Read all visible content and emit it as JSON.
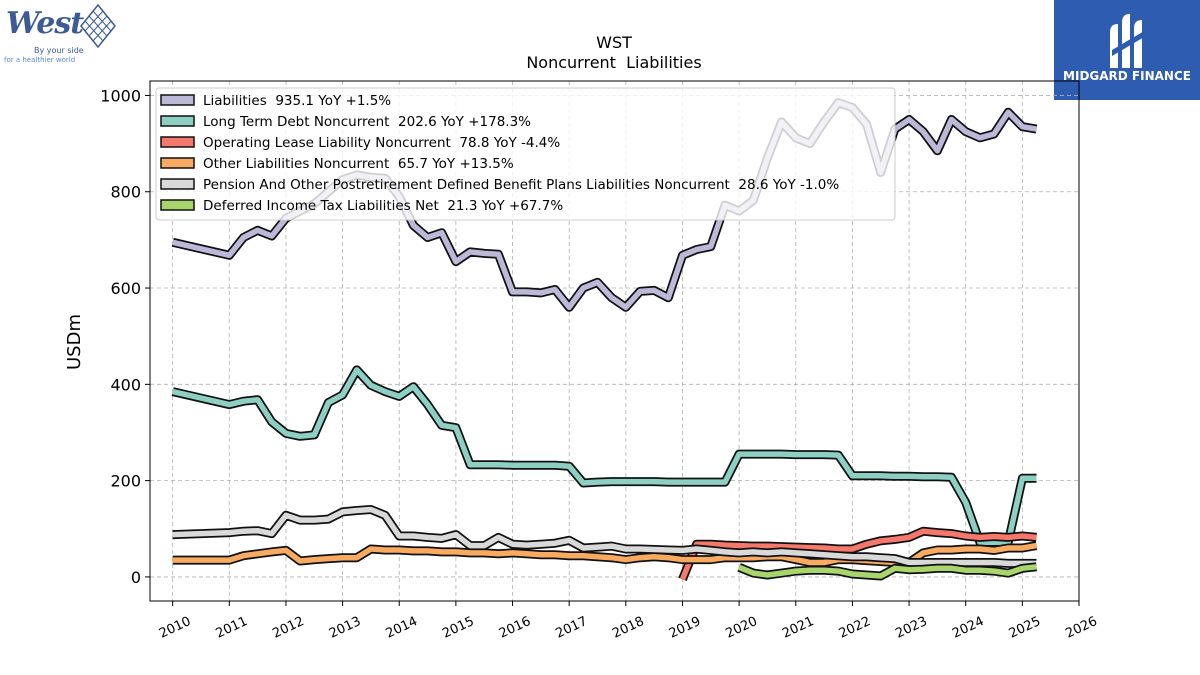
{
  "branding": {
    "left_logo": {
      "word": "West",
      "tagline_1": "By your side",
      "tagline_2": "for a healthier world",
      "icon": "west-diamond-logo-icon",
      "color": "#3d5a96"
    },
    "right_logo": {
      "text": "MIDGARD FINANCE",
      "icon": "midgard-m-logo-icon",
      "background": "#2e5cb0"
    }
  },
  "chart_data": {
    "type": "line",
    "title": "WST",
    "subtitle": "Noncurrent  Liabilities",
    "ylabel": "USDm",
    "xlabel": "",
    "xlim": [
      2009.6,
      2026.0
    ],
    "ylim": [
      -50,
      1030
    ],
    "x_ticks": [
      2010,
      2011,
      2012,
      2013,
      2014,
      2015,
      2016,
      2017,
      2018,
      2019,
      2020,
      2021,
      2022,
      2023,
      2024,
      2025,
      2026
    ],
    "y_ticks": [
      0,
      200,
      400,
      600,
      800,
      1000
    ],
    "grid": true,
    "legend_position": "top-left",
    "series": [
      {
        "name": "Liabilities",
        "legend": "Liabilities  935.1 YoY +1.5%",
        "color": "#bcb9d8",
        "x": [
          2010.0,
          2011.0,
          2011.25,
          2011.5,
          2011.75,
          2012.0,
          2012.25,
          2012.5,
          2012.75,
          2013.0,
          2013.25,
          2013.5,
          2013.75,
          2014.0,
          2014.25,
          2014.5,
          2014.75,
          2015.0,
          2015.25,
          2015.5,
          2015.75,
          2016.0,
          2016.25,
          2016.5,
          2016.75,
          2017.0,
          2017.25,
          2017.5,
          2017.75,
          2018.0,
          2018.25,
          2018.5,
          2018.75,
          2019.0,
          2019.25,
          2019.5,
          2019.75,
          2020.0,
          2020.25,
          2020.5,
          2020.75,
          2021.0,
          2021.25,
          2021.5,
          2021.75,
          2022.0,
          2022.25,
          2022.5,
          2022.75,
          2023.0,
          2023.25,
          2023.5,
          2023.75,
          2024.0,
          2024.25,
          2024.5,
          2024.75,
          2025.0,
          2025.25
        ],
        "values": [
          695,
          668,
          705,
          720,
          708,
          745,
          760,
          775,
          800,
          825,
          835,
          830,
          828,
          790,
          730,
          705,
          715,
          655,
          675,
          672,
          670,
          592,
          592,
          590,
          597,
          560,
          600,
          612,
          580,
          560,
          593,
          595,
          580,
          668,
          680,
          686,
          772,
          760,
          782,
          870,
          945,
          912,
          900,
          945,
          985,
          975,
          940,
          840,
          930,
          950,
          925,
          885,
          950,
          925,
          912,
          920,
          965,
          935,
          930
        ]
      },
      {
        "name": "Long Term Debt Noncurrent",
        "legend": "Long Term Debt Noncurrent  202.6 YoY +178.3%",
        "color": "#8ecfc4",
        "x": [
          2010.0,
          2011.0,
          2011.25,
          2011.5,
          2011.75,
          2012.0,
          2012.25,
          2012.5,
          2012.75,
          2013.0,
          2013.25,
          2013.5,
          2013.75,
          2014.0,
          2014.25,
          2014.5,
          2014.75,
          2015.0,
          2015.25,
          2015.5,
          2015.75,
          2016.0,
          2016.25,
          2016.5,
          2016.75,
          2017.0,
          2017.25,
          2017.5,
          2017.75,
          2018.0,
          2018.25,
          2018.5,
          2018.75,
          2019.0,
          2019.25,
          2019.5,
          2019.75,
          2020.0,
          2020.25,
          2020.5,
          2020.75,
          2021.0,
          2021.25,
          2021.5,
          2021.75,
          2022.0,
          2022.25,
          2022.5,
          2022.75,
          2023.0,
          2023.25,
          2023.5,
          2023.75,
          2024.0,
          2024.25,
          2024.5,
          2024.75,
          2025.0,
          2025.25
        ],
        "values": [
          385,
          358,
          365,
          368,
          322,
          298,
          292,
          295,
          362,
          378,
          430,
          398,
          385,
          375,
          395,
          358,
          315,
          310,
          233,
          233,
          233,
          232,
          232,
          232,
          232,
          230,
          195,
          197,
          198,
          198,
          198,
          198,
          197,
          197,
          197,
          197,
          197,
          255,
          255,
          255,
          255,
          254,
          254,
          254,
          253,
          210,
          210,
          210,
          209,
          209,
          208,
          208,
          207,
          155,
          72,
          72,
          72,
          205,
          205
        ]
      },
      {
        "name": "Operating Lease Liability Noncurrent",
        "legend": "Operating Lease Liability Noncurrent  78.8 YoY -4.4%",
        "color": "#f4786c",
        "x": [
          2019.0,
          2019.25,
          2019.5,
          2019.75,
          2020.0,
          2020.25,
          2020.5,
          2020.75,
          2021.0,
          2021.25,
          2021.5,
          2021.75,
          2022.0,
          2022.25,
          2022.5,
          2022.75,
          2023.0,
          2023.25,
          2023.5,
          2023.75,
          2024.0,
          2024.25,
          2024.5,
          2024.75,
          2025.0,
          2025.25
        ],
        "values": [
          -5,
          68,
          68,
          66,
          65,
          64,
          64,
          63,
          62,
          61,
          60,
          58,
          58,
          68,
          75,
          78,
          82,
          95,
          92,
          90,
          85,
          82,
          84,
          82,
          85,
          82
        ]
      },
      {
        "name": "Other Liabilities Noncurrent",
        "legend": "Other Liabilities Noncurrent  65.7 YoY +13.5%",
        "color": "#f8aa60",
        "x": [
          2010.0,
          2011.0,
          2011.25,
          2011.5,
          2011.75,
          2012.0,
          2012.25,
          2012.5,
          2012.75,
          2013.0,
          2013.25,
          2013.5,
          2013.75,
          2014.0,
          2014.25,
          2014.5,
          2014.75,
          2015.0,
          2015.25,
          2015.5,
          2015.75,
          2016.0,
          2016.25,
          2016.5,
          2016.75,
          2017.0,
          2017.25,
          2017.5,
          2017.75,
          2018.0,
          2018.25,
          2018.5,
          2018.75,
          2019.0,
          2019.25,
          2019.5,
          2019.75,
          2020.0,
          2020.25,
          2020.5,
          2020.75,
          2021.0,
          2021.25,
          2021.5,
          2021.75,
          2022.0,
          2022.25,
          2022.5,
          2022.75,
          2023.0,
          2023.25,
          2023.5,
          2023.75,
          2024.0,
          2024.25,
          2024.5,
          2024.75,
          2025.0,
          2025.25
        ],
        "values": [
          35,
          35,
          44,
          48,
          52,
          55,
          33,
          36,
          38,
          40,
          40,
          58,
          56,
          56,
          54,
          54,
          52,
          52,
          50,
          50,
          48,
          50,
          48,
          46,
          46,
          44,
          44,
          42,
          40,
          36,
          40,
          42,
          40,
          36,
          36,
          36,
          40,
          40,
          40,
          42,
          42,
          36,
          30,
          30,
          36,
          36,
          34,
          32,
          30,
          30,
          50,
          56,
          56,
          58,
          58,
          55,
          60,
          60,
          65
        ]
      },
      {
        "name": "Pension And Other Postretirement Defined Benefit Plans Liabilities Noncurrent",
        "legend": "Pension And Other Postretirement Defined Benefit Plans Liabilities Noncurrent  28.6 YoY -1.0%",
        "color": "#d9d9d9",
        "x": [
          2010.0,
          2011.0,
          2011.25,
          2011.5,
          2011.75,
          2012.0,
          2012.25,
          2012.5,
          2012.75,
          2013.0,
          2013.25,
          2013.5,
          2013.75,
          2014.0,
          2014.25,
          2014.5,
          2014.75,
          2015.0,
          2015.25,
          2015.5,
          2015.75,
          2016.0,
          2016.25,
          2016.5,
          2016.75,
          2017.0,
          2017.25,
          2017.5,
          2017.75,
          2018.0,
          2018.25,
          2018.5,
          2018.75,
          2019.0,
          2019.25,
          2019.5,
          2019.75,
          2020.0,
          2020.25,
          2020.5,
          2020.75,
          2021.0,
          2021.25,
          2021.5,
          2021.75,
          2022.0,
          2022.25,
          2022.5,
          2022.75,
          2023.0,
          2023.25,
          2023.5,
          2023.75,
          2024.0,
          2024.25,
          2024.5,
          2024.75,
          2025.0,
          2025.25
        ],
        "values": [
          88,
          92,
          95,
          96,
          90,
          128,
          118,
          118,
          120,
          135,
          138,
          140,
          128,
          85,
          85,
          82,
          80,
          88,
          65,
          65,
          82,
          68,
          66,
          68,
          70,
          76,
          60,
          62,
          64,
          58,
          58,
          57,
          56,
          55,
          58,
          55,
          52,
          50,
          52,
          50,
          52,
          50,
          48,
          46,
          44,
          42,
          42,
          40,
          38,
          30,
          30,
          30,
          30,
          30,
          30,
          30,
          28,
          28,
          28
        ]
      },
      {
        "name": "Deferred Income Tax Liabilities Net",
        "legend": "Deferred Income Tax Liabilities Net  21.3 YoY +67.7%",
        "color": "#a8d66c",
        "x": [
          2020.0,
          2020.25,
          2020.5,
          2020.75,
          2021.0,
          2021.25,
          2021.5,
          2021.75,
          2022.0,
          2022.25,
          2022.5,
          2022.75,
          2023.0,
          2023.25,
          2023.5,
          2023.75,
          2024.0,
          2024.25,
          2024.5,
          2024.75,
          2025.0,
          2025.25
        ],
        "values": [
          20,
          8,
          4,
          8,
          12,
          14,
          14,
          12,
          6,
          4,
          2,
          18,
          15,
          16,
          18,
          18,
          14,
          14,
          12,
          8,
          18,
          21
        ]
      }
    ]
  }
}
